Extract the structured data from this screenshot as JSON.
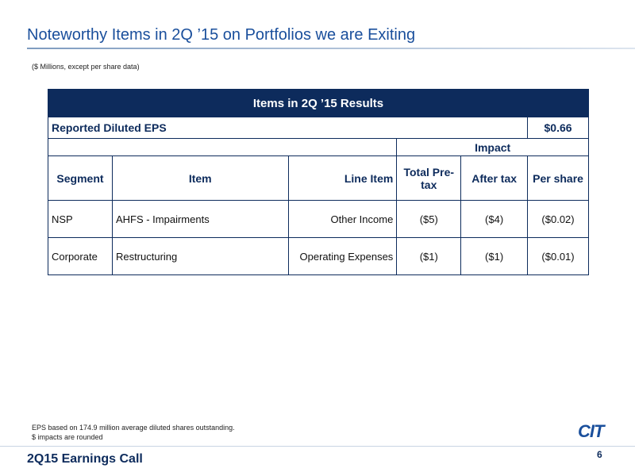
{
  "title": "Noteworthy Items in 2Q ’15 on Portfolios we are Exiting",
  "subtitle": "($ Millions, except per share data)",
  "table": {
    "caption": "Items in 2Q ’15 Results",
    "reported": {
      "label": "Reported Diluted EPS",
      "value": "$0.66"
    },
    "group_header": "Impact",
    "columns": [
      "Segment",
      "Item",
      "Line Item",
      "Total Pre-tax",
      "After tax",
      "Per share"
    ],
    "rows": [
      [
        "NSP",
        "AHFS - Impairments",
        "Other Income",
        "($5)",
        "($4)",
        "($0.02)"
      ],
      [
        "Corporate",
        "Restructuring",
        "Operating Expenses",
        "($1)",
        "($1)",
        "($0.01)"
      ]
    ]
  },
  "footnotes": [
    "EPS based on 174.9 million average diluted shares outstanding.",
    "$ impacts are rounded"
  ],
  "logo": "CIT",
  "footer": {
    "event": "2Q15 Earnings Call",
    "page": "6"
  }
}
